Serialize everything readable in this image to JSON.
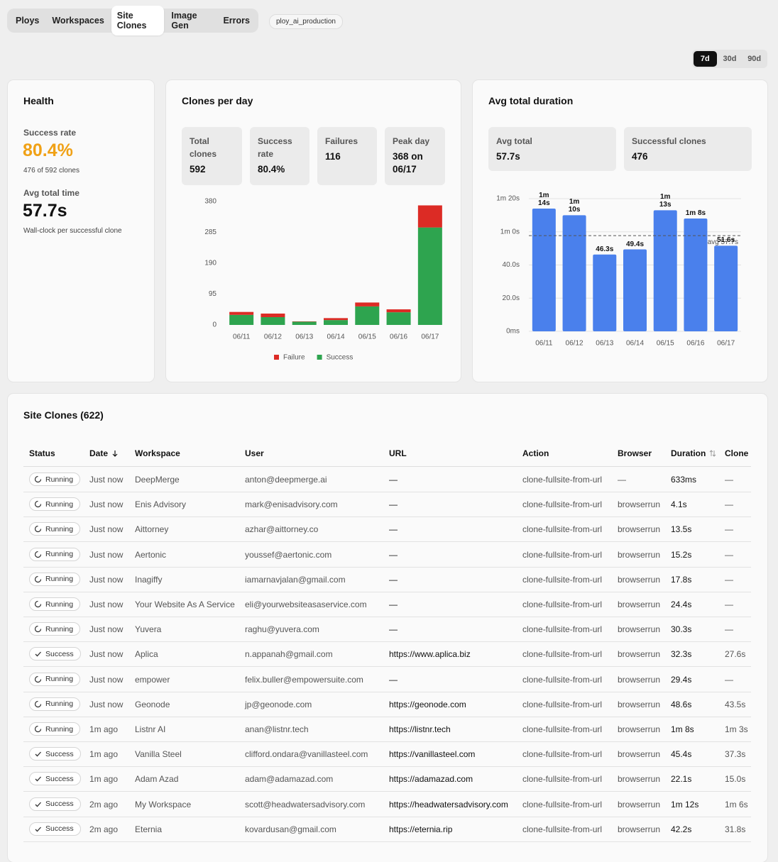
{
  "nav": {
    "tabs": [
      "Ploys",
      "Workspaces",
      "Site Clones",
      "Image Gen",
      "Errors"
    ],
    "active": 2
  },
  "environment": "ploy_ai_production",
  "ranges": {
    "options": [
      "7d",
      "30d",
      "90d"
    ],
    "active": 0
  },
  "health": {
    "title": "Health",
    "metrics": [
      {
        "label": "Success rate",
        "value": "80.4%",
        "note": "476 of 592 clones"
      },
      {
        "label": "Avg total time",
        "value": "57.7s",
        "note": "Wall-clock per successful clone"
      }
    ]
  },
  "clones_card": {
    "title": "Clones per day",
    "stats": [
      {
        "label": "Total clones",
        "value": "592"
      },
      {
        "label": "Success rate",
        "value": "80.4%"
      },
      {
        "label": "Failures",
        "value": "116"
      },
      {
        "label": "Peak day",
        "value": "368 on 06/17"
      }
    ]
  },
  "duration_card": {
    "title": "Avg total duration",
    "stats": [
      {
        "label": "Avg total",
        "value": "57.7s"
      },
      {
        "label": "Successful clones",
        "value": "476"
      }
    ]
  },
  "chart_data": [
    {
      "type": "stacked_bar",
      "categories": [
        "06/11",
        "06/12",
        "06/13",
        "06/14",
        "06/15",
        "06/16",
        "06/17"
      ],
      "series": [
        {
          "name": "Success",
          "color": "#2ea44f",
          "values": [
            31,
            24,
            10,
            15,
            57,
            39,
            300
          ]
        },
        {
          "name": "Failure",
          "color": "#dc2b25",
          "values": [
            9,
            11,
            1,
            6,
            12,
            9,
            68
          ]
        }
      ],
      "ylim": [
        0,
        380
      ],
      "yticks": [
        0,
        95,
        190,
        285,
        380
      ],
      "grid": false,
      "legend": "bottom"
    },
    {
      "type": "bar",
      "categories": [
        "06/11",
        "06/12",
        "06/13",
        "06/14",
        "06/15",
        "06/16",
        "06/17"
      ],
      "values": [
        74,
        70,
        46.3,
        49.4,
        73,
        68,
        51.6
      ],
      "value_labels": [
        "1m 14s",
        "1m 10s",
        "46.3s",
        "49.4s",
        "1m 13s",
        "1m 8s",
        "51.6s"
      ],
      "color": "#4a80ec",
      "ylim": [
        0,
        80
      ],
      "yticks": [
        {
          "value": 0,
          "label": "0ms"
        },
        {
          "value": 20,
          "label": "20.0s"
        },
        {
          "value": 40,
          "label": "40.0s"
        },
        {
          "value": 60,
          "label": "1m 0s"
        },
        {
          "value": 80,
          "label": "1m 20s"
        }
      ],
      "grid": true,
      "reference_line": {
        "value": 57.7,
        "label": "avg 57.7s"
      }
    }
  ],
  "table": {
    "title": "Site Clones (622)",
    "columns": [
      "Status",
      "Date",
      "Workspace",
      "User",
      "URL",
      "Action",
      "Browser",
      "Duration",
      "Clone"
    ],
    "rows": [
      [
        "Running",
        "Just now",
        "DeepMerge",
        "anton@deepmerge.ai",
        "—",
        "clone-fullsite-from-url",
        "—",
        "633ms",
        "—"
      ],
      [
        "Running",
        "Just now",
        "Enis Advisory",
        "mark@enisadvisory.com",
        "—",
        "clone-fullsite-from-url",
        "browserrun",
        "4.1s",
        "—"
      ],
      [
        "Running",
        "Just now",
        "Aittorney",
        "azhar@aittorney.co",
        "—",
        "clone-fullsite-from-url",
        "browserrun",
        "13.5s",
        "—"
      ],
      [
        "Running",
        "Just now",
        "Aertonic",
        "youssef@aertonic.com",
        "—",
        "clone-fullsite-from-url",
        "browserrun",
        "15.2s",
        "—"
      ],
      [
        "Running",
        "Just now",
        "Inagiffy",
        "iamarnavjalan@gmail.com",
        "—",
        "clone-fullsite-from-url",
        "browserrun",
        "17.8s",
        "—"
      ],
      [
        "Running",
        "Just now",
        "Your Website As A Service",
        "eli@yourwebsiteasaservice.com",
        "—",
        "clone-fullsite-from-url",
        "browserrun",
        "24.4s",
        "—"
      ],
      [
        "Running",
        "Just now",
        "Yuvera",
        "raghu@yuvera.com",
        "—",
        "clone-fullsite-from-url",
        "browserrun",
        "30.3s",
        "—"
      ],
      [
        "Success",
        "Just now",
        "Aplica",
        "n.appanah@gmail.com",
        "https://www.aplica.biz",
        "clone-fullsite-from-url",
        "browserrun",
        "32.3s",
        "27.6s"
      ],
      [
        "Running",
        "Just now",
        "empower",
        "felix.buller@empowersuite.com",
        "—",
        "clone-fullsite-from-url",
        "browserrun",
        "29.4s",
        "—"
      ],
      [
        "Running",
        "Just now",
        "Geonode",
        "jp@geonode.com",
        "https://geonode.com",
        "clone-fullsite-from-url",
        "browserrun",
        "48.6s",
        "43.5s"
      ],
      [
        "Running",
        "1m ago",
        "Listnr AI",
        "anan@listnr.tech",
        "https://listnr.tech",
        "clone-fullsite-from-url",
        "browserrun",
        "1m 8s",
        "1m 3s"
      ],
      [
        "Success",
        "1m ago",
        "Vanilla Steel",
        "clifford.ondara@vanillasteel.com",
        "https://vanillasteel.com",
        "clone-fullsite-from-url",
        "browserrun",
        "45.4s",
        "37.3s"
      ],
      [
        "Success",
        "1m ago",
        "Adam Azad",
        "adam@adamazad.com",
        "https://adamazad.com",
        "clone-fullsite-from-url",
        "browserrun",
        "22.1s",
        "15.0s"
      ],
      [
        "Success",
        "2m ago",
        "My Workspace",
        "scott@headwatersadvisory.com",
        "https://headwatersadvisory.com",
        "clone-fullsite-from-url",
        "browserrun",
        "1m 12s",
        "1m 6s"
      ],
      [
        "Success",
        "2m ago",
        "Eternia",
        "kovardusan@gmail.com",
        "https://eternia.rip",
        "clone-fullsite-from-url",
        "browserrun",
        "42.2s",
        "31.8s"
      ]
    ]
  }
}
